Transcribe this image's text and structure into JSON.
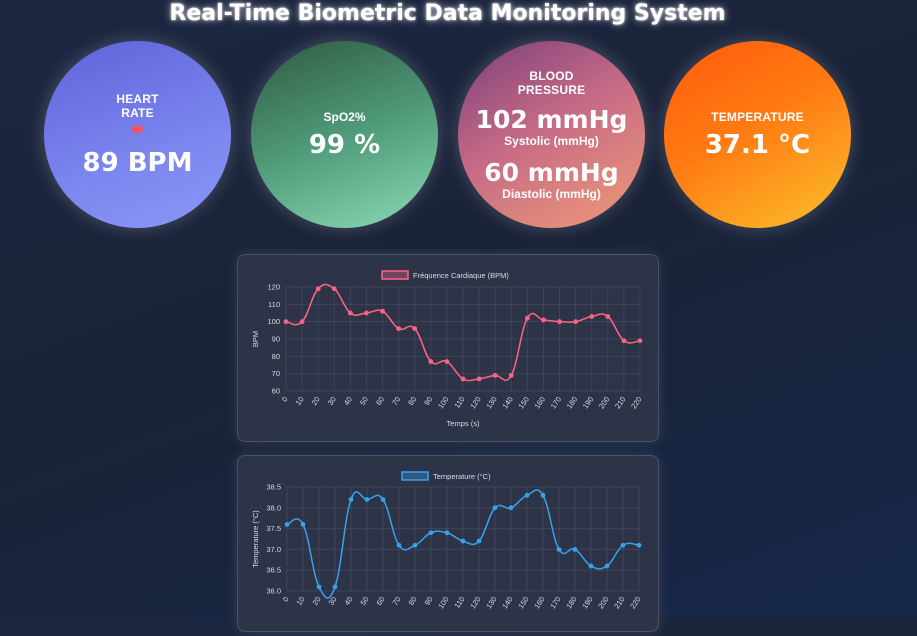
{
  "header": {
    "title": "Real-Time Biometric Data Monitoring System"
  },
  "cards": {
    "heart_rate": {
      "label_line1": "HEART",
      "label_line2": "RATE",
      "value": "89 BPM"
    },
    "spo2": {
      "label": "SpO2%",
      "value": "99 %"
    },
    "blood_pressure": {
      "label_line1": "BLOOD",
      "label_line2": "PRESSURE",
      "systolic_value": "102 mmHg",
      "systolic_label": "Systolic (mmHg)",
      "diastolic_value": "60 mmHg",
      "diastolic_label": "Diastolic (mmHg)"
    },
    "temperature": {
      "label": "TEMPERATURE",
      "value": "37.1 °C"
    }
  },
  "chart_data": [
    {
      "type": "line",
      "color": "#ff6384",
      "series_name": "Fréquence Cardiaque (BPM)",
      "xlabel": "Temps (s)",
      "ylabel": "BPM",
      "ylim": [
        60,
        120
      ],
      "yticks": [
        "60",
        "70",
        "80",
        "90",
        "100",
        "110",
        "120"
      ],
      "x": [
        "0",
        "10",
        "20",
        "30",
        "40",
        "50",
        "60",
        "70",
        "80",
        "90",
        "100",
        "110",
        "120",
        "130",
        "140",
        "150",
        "160",
        "170",
        "180",
        "190",
        "200",
        "210",
        "220"
      ],
      "values": [
        100,
        100,
        119,
        119,
        105,
        105,
        106,
        96,
        96,
        77,
        77,
        67,
        67,
        69,
        69,
        102,
        101,
        100,
        100,
        103,
        103,
        89,
        89
      ],
      "grid": true,
      "legend": "top"
    },
    {
      "type": "line",
      "color": "#36a2eb",
      "series_name": "Temperature (°C)",
      "xlabel": "",
      "ylabel": "Temperature (°C)",
      "ylim": [
        36.0,
        38.5
      ],
      "yticks": [
        "36.0",
        "36.5",
        "37.0",
        "37.5",
        "38.0",
        "38.5"
      ],
      "x": [
        "0",
        "10",
        "20",
        "30",
        "40",
        "50",
        "60",
        "70",
        "80",
        "90",
        "100",
        "110",
        "120",
        "130",
        "140",
        "150",
        "160",
        "170",
        "180",
        "190",
        "200",
        "210",
        "220"
      ],
      "values": [
        37.6,
        37.6,
        36.1,
        36.1,
        38.2,
        38.2,
        38.2,
        37.1,
        37.1,
        37.4,
        37.4,
        37.2,
        37.2,
        38.0,
        38.0,
        38.3,
        38.3,
        37.0,
        37.0,
        36.6,
        36.6,
        37.1,
        37.1
      ],
      "grid": true,
      "legend": "top"
    }
  ]
}
